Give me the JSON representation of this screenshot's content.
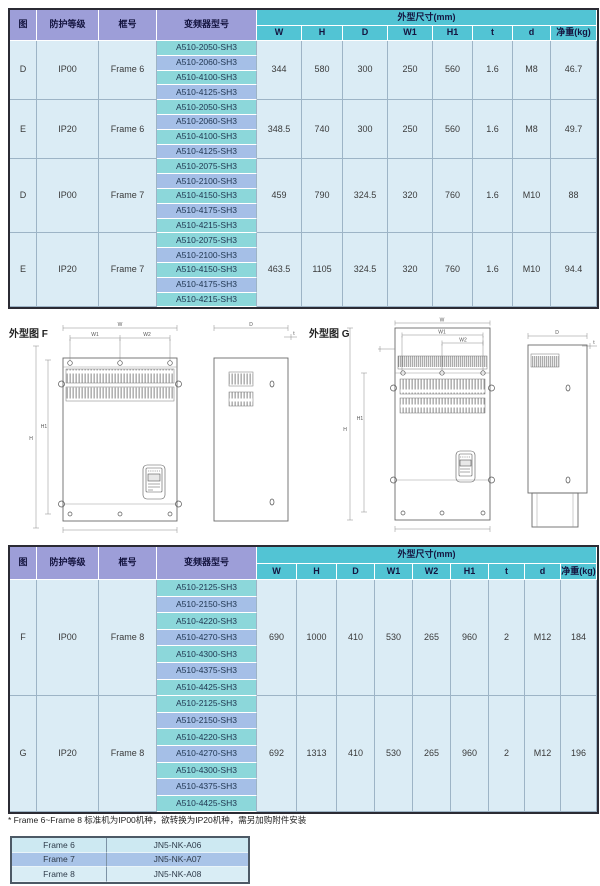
{
  "colors": {
    "header_purple": "#9d9ed8",
    "header_teal": "#52c4d4",
    "model_teal": "#8cd7da",
    "model_blue": "#a5bfe7",
    "row_light": "#dbecf5",
    "accessory_blue": "#a9c4e8",
    "accessory_light": "#cde9f2"
  },
  "table1": {
    "headers": {
      "figure": "图",
      "protection": "防护等级",
      "frame": "框号",
      "model": "变频器型号",
      "dims_group": "外型尺寸(mm)",
      "dims": [
        "W",
        "H",
        "D",
        "W1",
        "H1",
        "t",
        "d"
      ],
      "weight": "净重(kg)"
    },
    "groups": [
      {
        "figure": "D",
        "protection": "IP00",
        "frame": "Frame 6",
        "models": [
          "A510-2050-SH3",
          "A510-2060-SH3",
          "A510-4100-SH3",
          "A510-4125-SH3"
        ],
        "values": [
          "344",
          "580",
          "300",
          "250",
          "560",
          "1.6",
          "M8"
        ],
        "weight": "46.7"
      },
      {
        "figure": "E",
        "protection": "IP20",
        "frame": "Frame 6",
        "models": [
          "A510-2050-SH3",
          "A510-2060-SH3",
          "A510-4100-SH3",
          "A510-4125-SH3"
        ],
        "values": [
          "348.5",
          "740",
          "300",
          "250",
          "560",
          "1.6",
          "M8"
        ],
        "weight": "49.7"
      },
      {
        "figure": "D",
        "protection": "IP00",
        "frame": "Frame 7",
        "models": [
          "A510-2075-SH3",
          "A510-2100-SH3",
          "A510-4150-SH3",
          "A510-4175-SH3",
          "A510-4215-SH3"
        ],
        "values": [
          "459",
          "790",
          "324.5",
          "320",
          "760",
          "1.6",
          "M10"
        ],
        "weight": "88"
      },
      {
        "figure": "E",
        "protection": "IP20",
        "frame": "Frame 7",
        "models": [
          "A510-2075-SH3",
          "A510-2100-SH3",
          "A510-4150-SH3",
          "A510-4175-SH3",
          "A510-4215-SH3"
        ],
        "values": [
          "463.5",
          "1105",
          "324.5",
          "320",
          "760",
          "1.6",
          "M10"
        ],
        "weight": "94.4"
      }
    ]
  },
  "drawings": {
    "f": {
      "label": "外型图 F",
      "dims": {
        "w": "W",
        "w1": "W1",
        "w2": "W2",
        "h": "H",
        "h1": "H1",
        "d": "D",
        "t": "t"
      }
    },
    "g": {
      "label": "外型图 G",
      "dims": {
        "w": "W",
        "w1": "W1",
        "w2": "W2",
        "h": "H",
        "h1": "H1",
        "d": "D",
        "t": "t"
      }
    }
  },
  "table2": {
    "headers": {
      "figure": "图",
      "protection": "防护等级",
      "frame": "框号",
      "model": "变频器型号",
      "dims_group": "外型尺寸(mm)",
      "dims": [
        "W",
        "H",
        "D",
        "W1",
        "W2",
        "H1",
        "t",
        "d"
      ],
      "weight": "净重(kg)"
    },
    "groups": [
      {
        "figure": "F",
        "protection": "IP00",
        "frame": "Frame 8",
        "models": [
          "A510-2125-SH3",
          "A510-2150-SH3",
          "A510-4220-SH3",
          "A510-4270-SH3",
          "A510-4300-SH3",
          "A510-4375-SH3",
          "A510-4425-SH3"
        ],
        "values": [
          "690",
          "1000",
          "410",
          "530",
          "265",
          "960",
          "2",
          "M12"
        ],
        "weight": "184"
      },
      {
        "figure": "G",
        "protection": "IP20",
        "frame": "Frame 8",
        "models": [
          "A510-2125-SH3",
          "A510-2150-SH3",
          "A510-4220-SH3",
          "A510-4270-SH3",
          "A510-4300-SH3",
          "A510-4375-SH3",
          "A510-4425-SH3"
        ],
        "values": [
          "692",
          "1313",
          "410",
          "530",
          "265",
          "960",
          "2",
          "M12"
        ],
        "weight": "196"
      }
    ]
  },
  "footnote": "* Frame 6~Frame 8 标准机为IP00机种，欲转换为IP20机种，需另加购附件安装",
  "accessory_table": {
    "rows": [
      {
        "frame": "Frame 6",
        "part": "JN5-NK-A06"
      },
      {
        "frame": "Frame 7",
        "part": "JN5-NK-A07"
      },
      {
        "frame": "Frame 8",
        "part": "JN5-NK-A08"
      }
    ]
  }
}
